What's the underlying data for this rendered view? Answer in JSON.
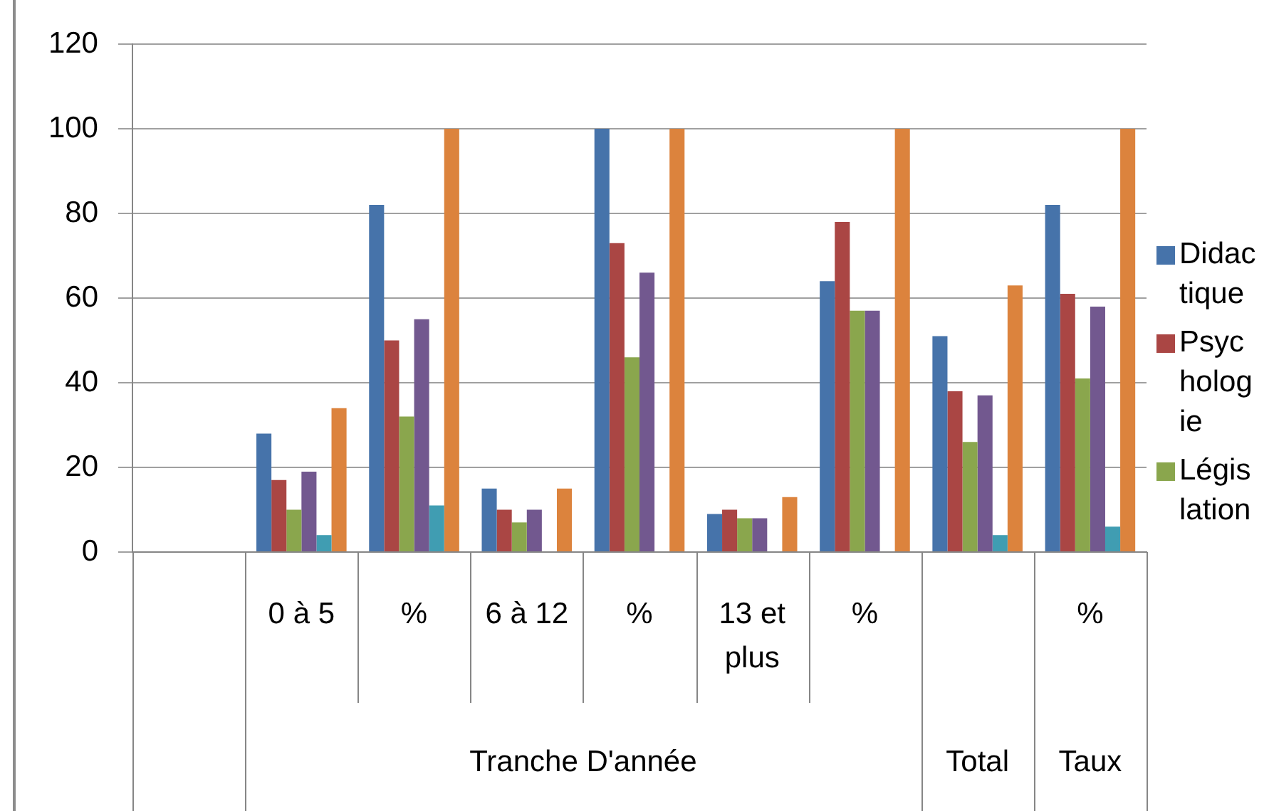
{
  "chart_data": {
    "type": "bar",
    "categories": [
      null,
      "0 à 5",
      "%",
      "6 à 12",
      "%",
      "13 et plus",
      "%",
      null,
      "%"
    ],
    "series": [
      {
        "name": "Didactique",
        "color": "#4673aa",
        "values": [
          null,
          28,
          82,
          15,
          100,
          9,
          64,
          51,
          82
        ]
      },
      {
        "name": "Psychologie",
        "color": "#aa4644",
        "values": [
          null,
          17,
          50,
          10,
          73,
          10,
          78,
          38,
          61
        ]
      },
      {
        "name": "Législation",
        "color": "#8aa64d",
        "values": [
          null,
          10,
          32,
          7,
          46,
          8,
          57,
          26,
          41
        ]
      },
      {
        "color": "#72588f",
        "values": [
          null,
          19,
          55,
          10,
          66,
          8,
          57,
          37,
          58
        ]
      },
      {
        "color": "#409db2",
        "values": [
          null,
          4,
          11,
          null,
          null,
          null,
          null,
          4,
          6
        ]
      },
      {
        "color": "#dc833d",
        "values": [
          null,
          34,
          100,
          15,
          100,
          13,
          100,
          63,
          100
        ]
      }
    ],
    "ylim": [
      0,
      120
    ],
    "yticks": [
      0,
      20,
      40,
      60,
      80,
      100,
      120
    ],
    "grid": "y",
    "legend": "right",
    "annotations": [
      "Tranche D'année",
      "Total",
      "Taux"
    ]
  }
}
